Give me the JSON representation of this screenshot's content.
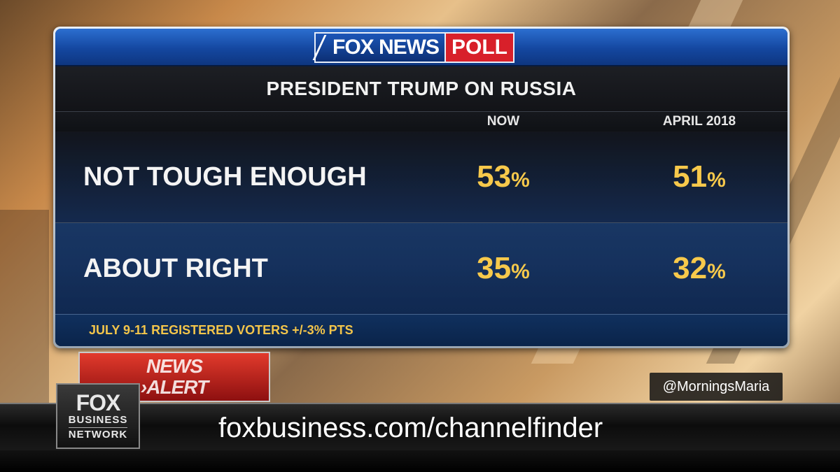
{
  "logo": {
    "fox_news": "FOX NEWS",
    "poll": "POLL"
  },
  "chart_data": {
    "type": "table",
    "title": "PRESIDENT TRUMP ON RUSSIA",
    "columns": [
      "NOW",
      "APRIL 2018"
    ],
    "rows": [
      {
        "label": "NOT TOUGH ENOUGH",
        "values": [
          53,
          51
        ]
      },
      {
        "label": "ABOUT RIGHT",
        "values": [
          35,
          32
        ]
      }
    ],
    "unit": "%",
    "footnote": "JULY 9-11   REGISTERED VOTERS +/-3% PTS"
  },
  "lower_third": {
    "news_alert_line1": "NEWS",
    "news_alert_line2": "›ALERT",
    "handle": "@MorningsMaria",
    "ticker": "foxbusiness.com/channelfinder",
    "network_logo": {
      "fox": "FOX",
      "business": "BUSINESS",
      "network": "NETWORK"
    }
  },
  "colors": {
    "value_gold": "#f7c94b",
    "header_blue": "#1447a0",
    "poll_red": "#d8202a"
  }
}
